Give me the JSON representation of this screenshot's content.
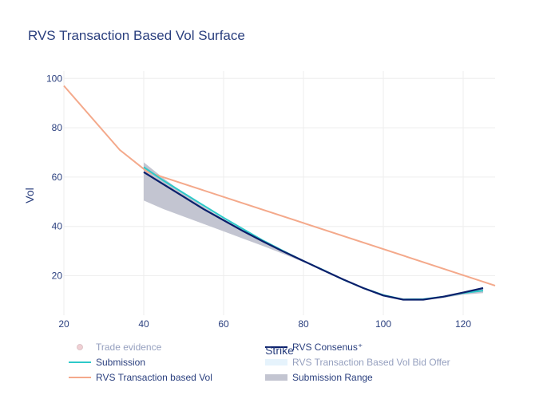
{
  "chart_data": {
    "type": "line",
    "title": "RVS Transaction Based Vol Surface",
    "xlabel": "Strike",
    "ylabel": "Vol",
    "xlim": [
      20,
      128
    ],
    "ylim": [
      4,
      103
    ],
    "xticks": [
      20,
      40,
      60,
      80,
      100,
      120
    ],
    "yticks": [
      20,
      40,
      60,
      80,
      100
    ],
    "grid": true,
    "legend_position": "bottom",
    "colors": {
      "title": "#2a3f7e",
      "axis_text": "#2a3f7e",
      "grid": "#eeeeee",
      "range_fill": "#c3c5d1",
      "submission": "#2ec9c9",
      "consensus": "#0a1f6b",
      "transaction_vol": "#f4a98b",
      "trade_evidence": "#e2a2aa",
      "bid_offer": "#cfe8fb",
      "legend_text": "#2a3f7e",
      "legend_text_muted": "#b3b9c7"
    },
    "submission_range": {
      "name": "Submission Range",
      "x": [
        40,
        45,
        50,
        55,
        60,
        65,
        70,
        75,
        80,
        85,
        90,
        95,
        100,
        105,
        110,
        115,
        120,
        125
      ],
      "upper": [
        66,
        59.5,
        53.5,
        48,
        43,
        38.5,
        34,
        30,
        26,
        22.5,
        18.5,
        15,
        12,
        10.5,
        10.7,
        11.8,
        13.5,
        14.8
      ],
      "lower": [
        50.5,
        47,
        44,
        41,
        38,
        35,
        32,
        28.8,
        25.5,
        22,
        18.3,
        14.8,
        12,
        10.2,
        10.2,
        11,
        12.3,
        13
      ]
    },
    "series": [
      {
        "name": "Submission",
        "x": [
          40,
          45,
          50,
          55,
          60,
          65,
          70,
          75,
          80,
          85,
          90,
          95,
          100,
          105,
          110,
          115,
          120,
          125
        ],
        "values": [
          64,
          58.5,
          53.5,
          48.5,
          43.5,
          38.8,
          34.2,
          30,
          26,
          22.3,
          18.4,
          15,
          12.2,
          10.4,
          10.5,
          11.5,
          13,
          14
        ]
      },
      {
        "name": "RVS Consenus⁺",
        "x": [
          40,
          45,
          50,
          55,
          60,
          65,
          70,
          75,
          80,
          85,
          90,
          95,
          100,
          105,
          110,
          115,
          120,
          125
        ],
        "values": [
          62,
          57,
          52,
          47,
          42.5,
          38,
          33.8,
          29.8,
          26,
          22.2,
          18.5,
          15,
          12,
          10.3,
          10.3,
          11.5,
          13.2,
          15
        ]
      },
      {
        "name": "RVS Transaction based Vol",
        "x": [
          20,
          34,
          41,
          128
        ],
        "values": [
          97,
          71,
          62,
          16
        ]
      }
    ],
    "legend": [
      {
        "label": "Trade evidence",
        "symbol": "marker",
        "color": "#e2a2aa",
        "muted": true
      },
      {
        "label": "RVS Consenus⁺",
        "symbol": "line",
        "color": "#0a1f6b",
        "muted": false
      },
      {
        "label": "Submission",
        "symbol": "line",
        "color": "#2ec9c9",
        "muted": false
      },
      {
        "label": "RVS Transaction Based Vol Bid Offer",
        "symbol": "band",
        "color": "#cfe8fb",
        "muted": true
      },
      {
        "label": "RVS Transaction based Vol",
        "symbol": "line",
        "color": "#f4a98b",
        "muted": false
      },
      {
        "label": "Submission Range",
        "symbol": "band",
        "color": "#c3c5d1",
        "muted": false
      }
    ]
  }
}
